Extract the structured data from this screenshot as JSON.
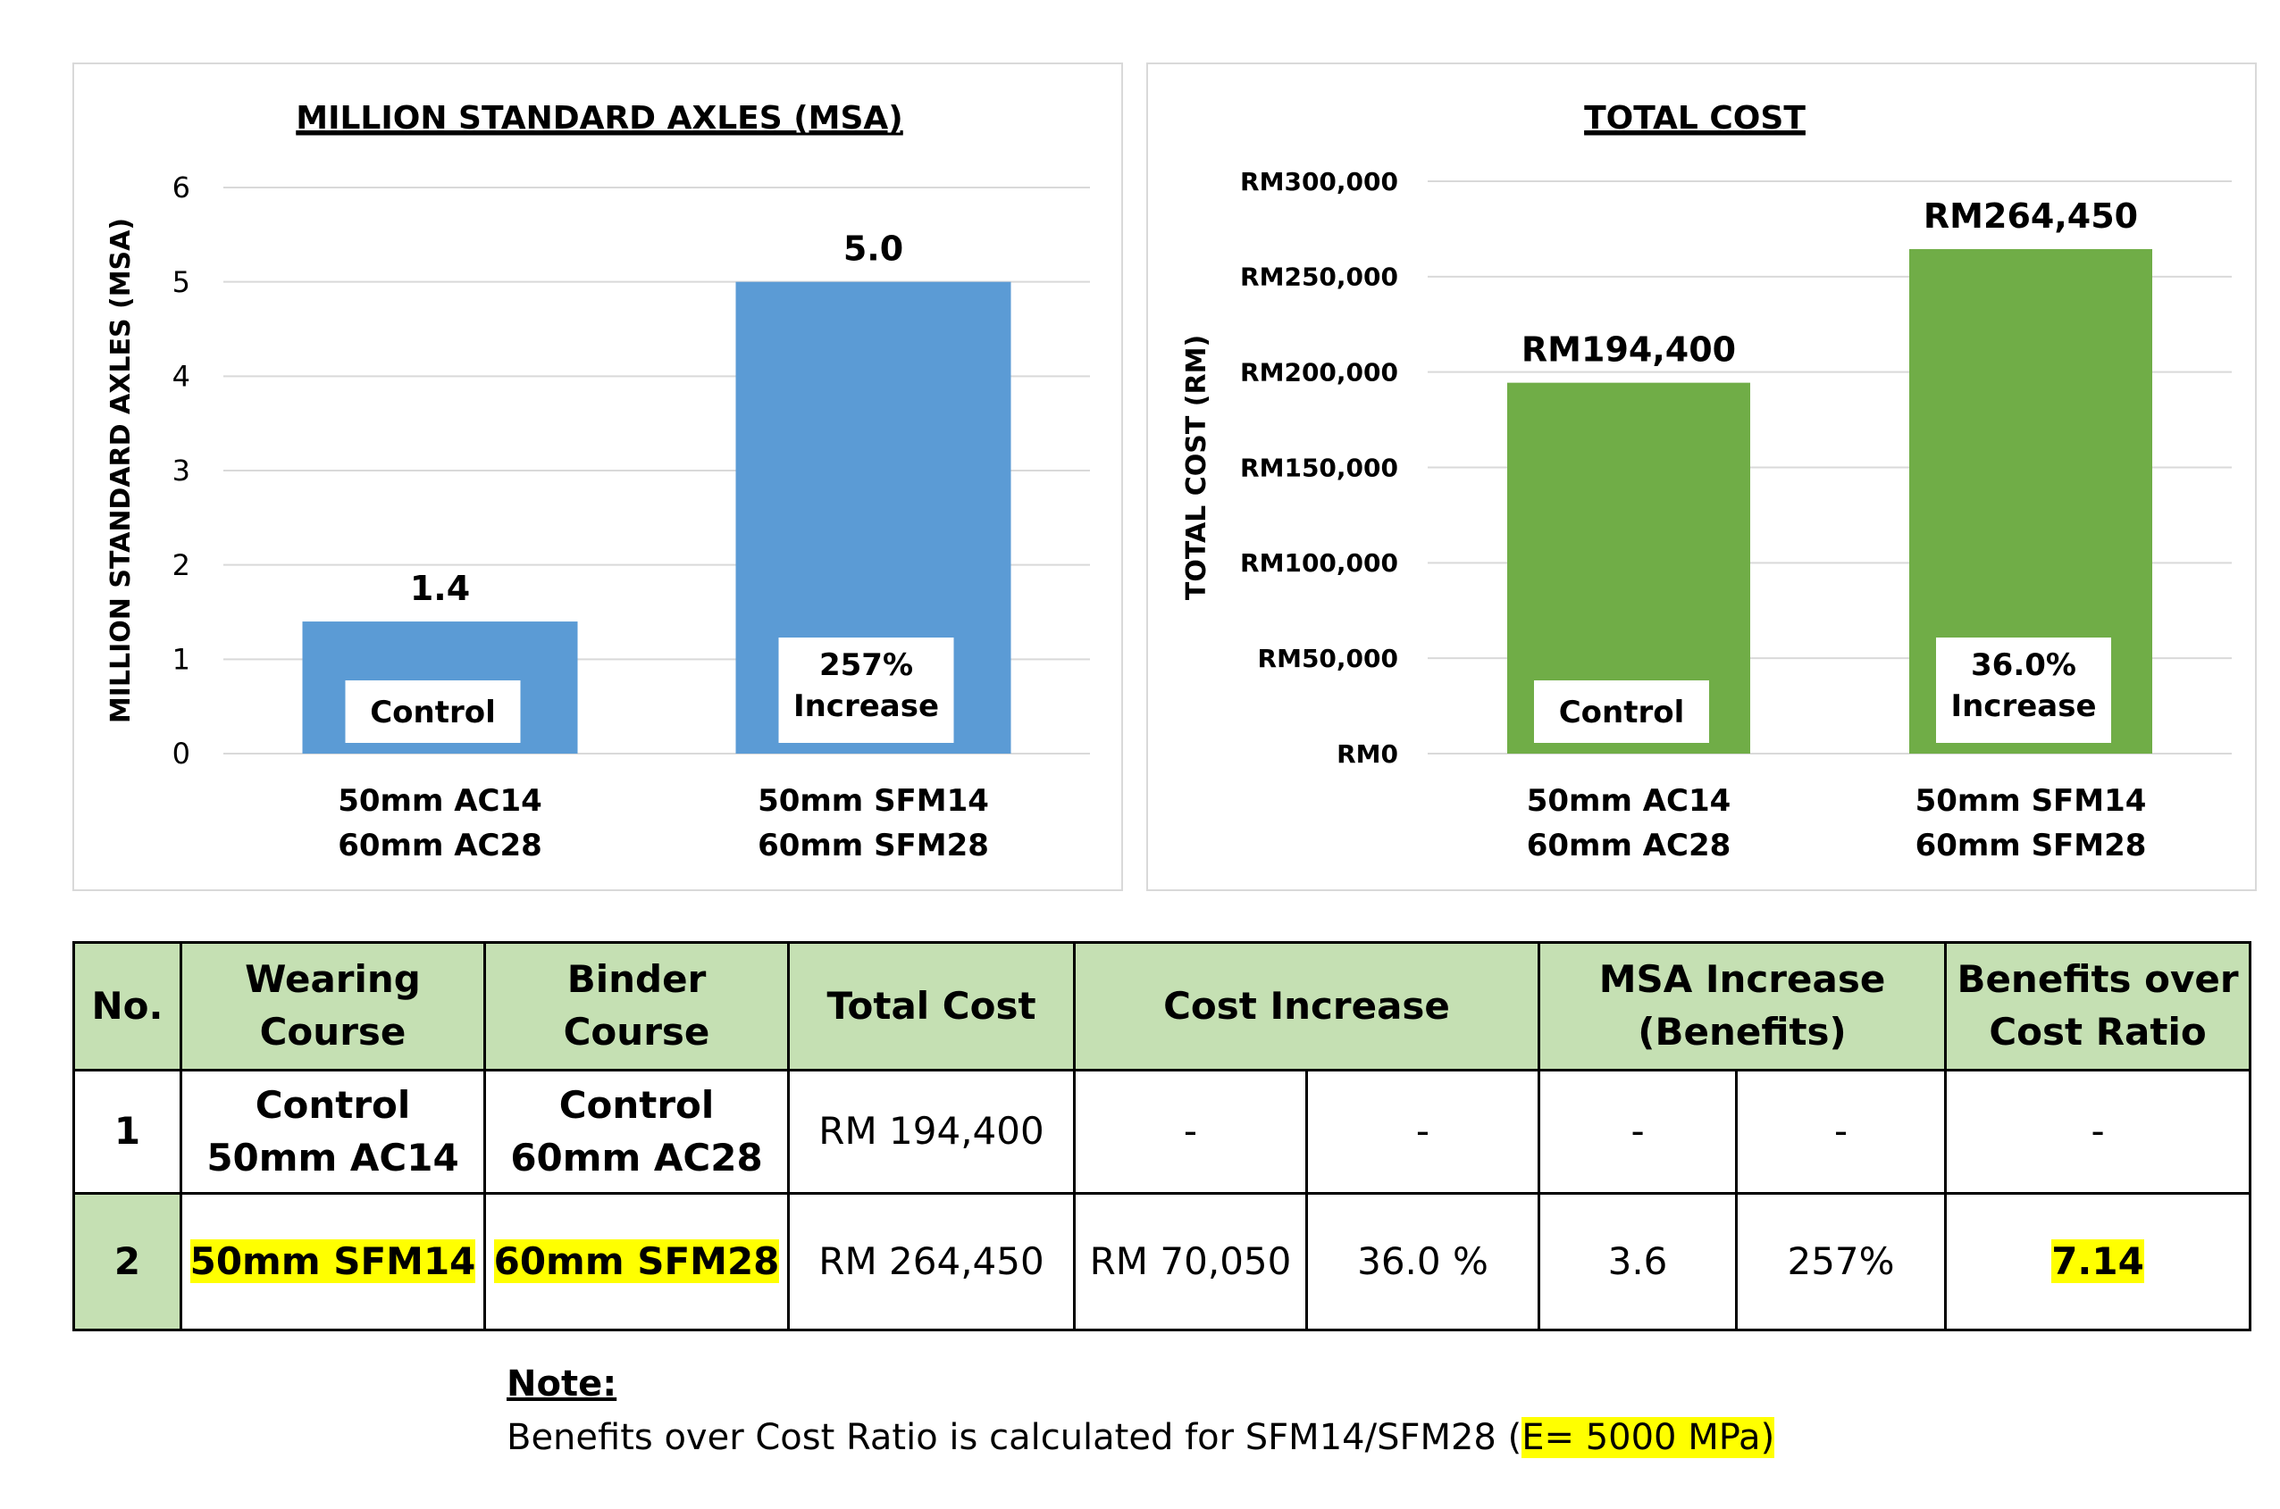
{
  "chart_data": [
    {
      "type": "bar",
      "title": "MILLION STANDARD AXLES (MSA)",
      "ylabel": "MILLION STANDARD AXLES  (MSA)",
      "xlabel": "",
      "ylim": [
        0,
        6
      ],
      "yticks": [
        0,
        1,
        2,
        3,
        4,
        5,
        6
      ],
      "ytick_labels": [
        "0",
        "1",
        "2",
        "3",
        "4",
        "5",
        "6"
      ],
      "categories": [
        [
          "50mm AC14",
          "60mm AC28"
        ],
        [
          "50mm SFM14",
          "60mm SFM28"
        ]
      ],
      "values": [
        1.4,
        5.0
      ],
      "value_labels": [
        "1.4",
        "5.0"
      ],
      "inner_labels": [
        [
          "Control"
        ],
        [
          "257%",
          "Increase"
        ]
      ],
      "bar_color": "#5b9bd5",
      "grid": true
    },
    {
      "type": "bar",
      "title": "TOTAL COST",
      "ylabel": "TOTAL COST (RM)",
      "xlabel": "",
      "ylim": [
        0,
        300000
      ],
      "yticks": [
        0,
        50000,
        100000,
        150000,
        200000,
        250000,
        300000
      ],
      "ytick_labels": [
        "RM0",
        "RM50,000",
        "RM100,000",
        "RM150,000",
        "RM200,000",
        "RM250,000",
        "RM300,000"
      ],
      "categories": [
        [
          "50mm AC14",
          "60mm AC28"
        ],
        [
          "50mm SFM14",
          "60mm SFM28"
        ]
      ],
      "values": [
        194400,
        264450
      ],
      "value_labels": [
        "RM194,400",
        "RM264,450"
      ],
      "inner_labels": [
        [
          "Control"
        ],
        [
          "36.0%",
          "Increase"
        ]
      ],
      "bar_color": "#70ad47",
      "grid": true
    }
  ],
  "table": {
    "header": {
      "no": "No.",
      "wearing": [
        "Wearing",
        "Course"
      ],
      "binder": [
        "Binder",
        "Course"
      ],
      "total_cost": "Total Cost",
      "cost_increase": "Cost Increase",
      "msa_increase": [
        "MSA Increase",
        "(Benefits)"
      ],
      "ratio": [
        "Benefits over",
        "Cost Ratio"
      ]
    },
    "rows": [
      {
        "no": "1",
        "wearing": [
          "Control",
          "50mm AC14"
        ],
        "binder": [
          "Control",
          "60mm AC28"
        ],
        "total_cost": "RM 194,400",
        "cost_increase_rm": "-",
        "cost_increase_pct": "-",
        "msa_increase_abs": "-",
        "msa_increase_pct": "-",
        "ratio": "-"
      },
      {
        "no": "2",
        "wearing": "50mm SFM14",
        "binder": "60mm SFM28",
        "total_cost": "RM 264,450",
        "cost_increase_rm": "RM 70,050",
        "cost_increase_pct": "36.0 %",
        "msa_increase_abs": "3.6",
        "msa_increase_pct": "257%",
        "ratio": "7.14"
      }
    ]
  },
  "note": {
    "title": "Note:",
    "text_prefix": "Benefits over Cost Ratio is calculated for SFM14/SFM28 (",
    "highlight": "E= 5000 MPa)"
  },
  "colors": {
    "header_bg": "#c5e0b3",
    "highlight": "#ffff00",
    "msa_bar": "#5b9bd5",
    "cost_bar": "#70ad47",
    "grid": "#d9d9d9"
  }
}
